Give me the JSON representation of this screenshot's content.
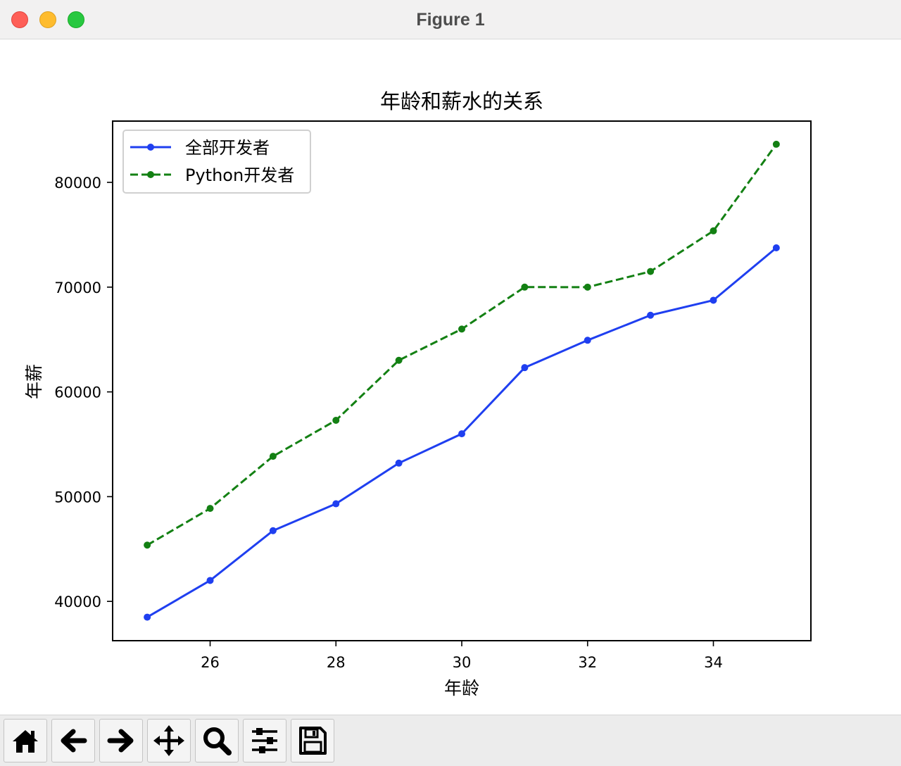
{
  "window": {
    "title": "Figure 1"
  },
  "chart_data": {
    "type": "line",
    "title": "年龄和薪水的关系",
    "xlabel": "年龄",
    "ylabel": "年薪",
    "x": [
      25,
      26,
      27,
      28,
      29,
      30,
      31,
      32,
      33,
      34,
      35
    ],
    "xlim": [
      24.45,
      35.55
    ],
    "ylim": [
      36250,
      85850
    ],
    "xticks": [
      26,
      28,
      30,
      32,
      34
    ],
    "yticks": [
      40000,
      50000,
      60000,
      70000,
      80000
    ],
    "grid": false,
    "legend_position": "top-left",
    "series": [
      {
        "name": "全部开发者",
        "color": "#1f3ff0",
        "line_style": "solid",
        "marker": "circle",
        "values": [
          38496,
          42000,
          46752,
          49320,
          53200,
          56000,
          62316,
          64928,
          67317,
          68748,
          73752
        ]
      },
      {
        "name": "Python开发者",
        "color": "#138013",
        "line_style": "dashed",
        "marker": "circle",
        "values": [
          45372,
          48876,
          53850,
          57287,
          63016,
          65998,
          70003,
          70000,
          71496,
          75370,
          83640
        ]
      }
    ]
  },
  "toolbar": {
    "buttons": [
      {
        "name": "home-button",
        "icon": "home-icon"
      },
      {
        "name": "back-button",
        "icon": "arrow-left-icon"
      },
      {
        "name": "forward-button",
        "icon": "arrow-right-icon"
      },
      {
        "name": "pan-button",
        "icon": "move-icon"
      },
      {
        "name": "zoom-button",
        "icon": "magnifier-icon"
      },
      {
        "name": "configure-subplots-button",
        "icon": "sliders-icon"
      },
      {
        "name": "save-button",
        "icon": "floppy-disk-icon"
      }
    ]
  }
}
